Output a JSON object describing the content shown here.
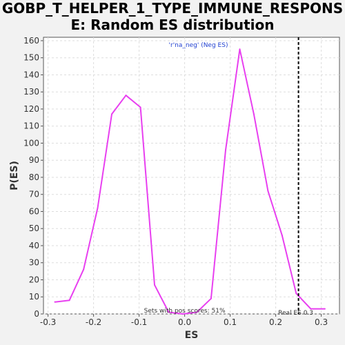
{
  "chart_data": {
    "type": "line",
    "title_line1": "GOBP_T_HELPER_1_TYPE_IMMUNE_RESPONS",
    "title_line2": "E: Random ES distribution",
    "xlabel": "ES",
    "ylabel": "P(ES)",
    "xlim": [
      -0.31,
      0.34
    ],
    "ylim": [
      0,
      162
    ],
    "x_ticks": [
      -0.3,
      -0.2,
      -0.1,
      0.0,
      0.1,
      0.2,
      0.3
    ],
    "x_tick_labels": [
      "-0.3",
      "-0.2",
      "-0.1",
      "0.0",
      "0.1",
      "0.2",
      "0.3"
    ],
    "y_ticks": [
      0,
      10,
      20,
      30,
      40,
      50,
      60,
      70,
      80,
      90,
      100,
      110,
      120,
      130,
      140,
      150,
      160
    ],
    "y_tick_labels": [
      "0",
      "10",
      "20",
      "30",
      "40",
      "50",
      "60",
      "70",
      "80",
      "90",
      "100",
      "110",
      "120",
      "130",
      "140",
      "150",
      "160"
    ],
    "grid": true,
    "series": [
      {
        "name": "'r'na_neg' (Neg ES)",
        "color": "#e83ff0",
        "x": [
          -0.285,
          -0.253,
          -0.222,
          -0.191,
          -0.16,
          -0.129,
          -0.097,
          -0.066,
          -0.035,
          -0.004,
          0.027,
          0.058,
          0.09,
          0.121,
          0.152,
          0.183,
          0.214,
          0.245,
          0.277,
          0.308
        ],
        "y": [
          7,
          8,
          26,
          62,
          117,
          128,
          121,
          17,
          1,
          0,
          1,
          9,
          96,
          155,
          117,
          72,
          46,
          12,
          3,
          3
        ]
      }
    ],
    "real_es": {
      "value": 0.25,
      "label": "Real ES 0.3",
      "color": "#000000"
    },
    "annotation": "Sets with pos scores: 51%",
    "legend_position": "top-center"
  }
}
